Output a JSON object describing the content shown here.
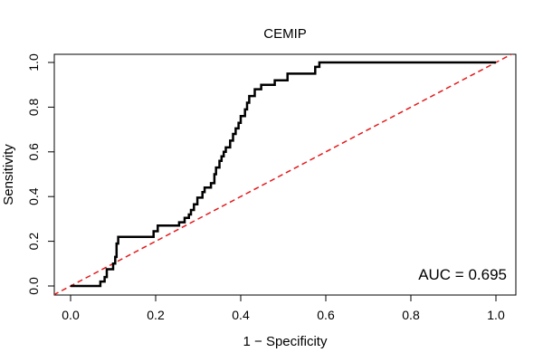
{
  "chart_data": {
    "type": "line",
    "title": "CEMIP",
    "xlabel": "1 − Specificity",
    "ylabel": "Sensitivity",
    "xlim": [
      0,
      1
    ],
    "ylim": [
      0,
      1
    ],
    "x_ticks": [
      "0.0",
      "0.2",
      "0.4",
      "0.6",
      "0.8",
      "1.0"
    ],
    "y_ticks": [
      "0.0",
      "0.2",
      "0.4",
      "0.6",
      "0.8",
      "1.0"
    ],
    "grid": false,
    "annotation": "AUC = 0.695",
    "series": [
      {
        "name": "ROC curve",
        "color": "#000000",
        "points": [
          [
            0.0,
            0.0
          ],
          [
            0.07,
            0.0
          ],
          [
            0.07,
            0.02
          ],
          [
            0.08,
            0.02
          ],
          [
            0.08,
            0.04
          ],
          [
            0.085,
            0.04
          ],
          [
            0.085,
            0.075
          ],
          [
            0.1,
            0.075
          ],
          [
            0.1,
            0.1
          ],
          [
            0.105,
            0.1
          ],
          [
            0.105,
            0.13
          ],
          [
            0.108,
            0.13
          ],
          [
            0.108,
            0.19
          ],
          [
            0.112,
            0.19
          ],
          [
            0.112,
            0.22
          ],
          [
            0.195,
            0.22
          ],
          [
            0.195,
            0.245
          ],
          [
            0.205,
            0.245
          ],
          [
            0.205,
            0.27
          ],
          [
            0.255,
            0.27
          ],
          [
            0.255,
            0.285
          ],
          [
            0.268,
            0.285
          ],
          [
            0.268,
            0.305
          ],
          [
            0.278,
            0.305
          ],
          [
            0.278,
            0.32
          ],
          [
            0.283,
            0.32
          ],
          [
            0.283,
            0.34
          ],
          [
            0.29,
            0.34
          ],
          [
            0.29,
            0.365
          ],
          [
            0.298,
            0.365
          ],
          [
            0.298,
            0.395
          ],
          [
            0.31,
            0.395
          ],
          [
            0.31,
            0.42
          ],
          [
            0.315,
            0.42
          ],
          [
            0.315,
            0.44
          ],
          [
            0.33,
            0.44
          ],
          [
            0.33,
            0.46
          ],
          [
            0.338,
            0.46
          ],
          [
            0.338,
            0.5
          ],
          [
            0.342,
            0.5
          ],
          [
            0.342,
            0.53
          ],
          [
            0.35,
            0.53
          ],
          [
            0.35,
            0.56
          ],
          [
            0.355,
            0.56
          ],
          [
            0.355,
            0.58
          ],
          [
            0.36,
            0.58
          ],
          [
            0.36,
            0.6
          ],
          [
            0.365,
            0.6
          ],
          [
            0.365,
            0.62
          ],
          [
            0.375,
            0.62
          ],
          [
            0.375,
            0.65
          ],
          [
            0.382,
            0.65
          ],
          [
            0.382,
            0.68
          ],
          [
            0.388,
            0.68
          ],
          [
            0.388,
            0.705
          ],
          [
            0.395,
            0.705
          ],
          [
            0.395,
            0.73
          ],
          [
            0.4,
            0.73
          ],
          [
            0.4,
            0.76
          ],
          [
            0.41,
            0.76
          ],
          [
            0.41,
            0.79
          ],
          [
            0.415,
            0.79
          ],
          [
            0.415,
            0.82
          ],
          [
            0.42,
            0.82
          ],
          [
            0.42,
            0.85
          ],
          [
            0.433,
            0.85
          ],
          [
            0.433,
            0.88
          ],
          [
            0.448,
            0.88
          ],
          [
            0.448,
            0.9
          ],
          [
            0.48,
            0.9
          ],
          [
            0.48,
            0.92
          ],
          [
            0.51,
            0.92
          ],
          [
            0.51,
            0.95
          ],
          [
            0.575,
            0.95
          ],
          [
            0.575,
            0.98
          ],
          [
            0.585,
            0.98
          ],
          [
            0.585,
            1.0
          ],
          [
            1.0,
            1.0
          ]
        ]
      },
      {
        "name": "Reference diagonal",
        "color": "#e31a1c",
        "style": "dashed",
        "points": [
          [
            -0.04,
            -0.04
          ],
          [
            1.04,
            1.04
          ]
        ]
      }
    ]
  }
}
